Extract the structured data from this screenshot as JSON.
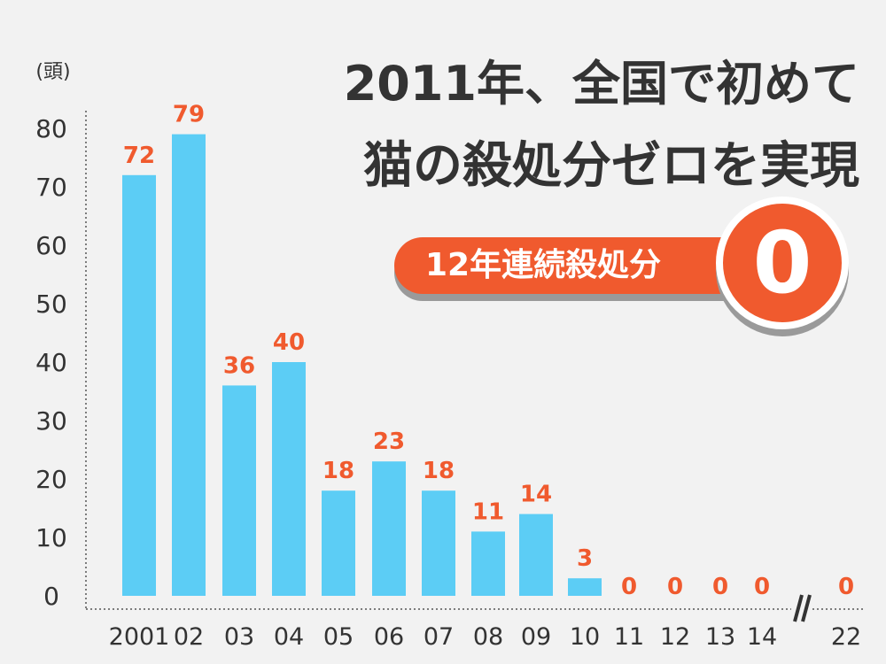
{
  "title_line1": "2011年、全国で初めて",
  "title_line2": "猫の殺処分ゼロを実現",
  "badge": {
    "label": "12年連続殺処分",
    "value": "0"
  },
  "colors": {
    "bar": "#5ccdf5",
    "label": "#f05a2e",
    "text": "#333333",
    "axis": "#555555"
  },
  "chart_data": {
    "type": "bar",
    "ylabel": "(頭)",
    "ylim": [
      0,
      80
    ],
    "yticks": [
      0,
      10,
      20,
      30,
      40,
      50,
      60,
      70,
      80
    ],
    "categories": [
      "2001",
      "02",
      "03",
      "04",
      "05",
      "06",
      "07",
      "08",
      "09",
      "10",
      "11",
      "12",
      "13",
      "14",
      "22"
    ],
    "values": [
      72,
      79,
      36,
      40,
      18,
      23,
      18,
      11,
      14,
      3,
      0,
      0,
      0,
      0,
      0
    ],
    "axis_break": "//",
    "axis_break_after": "14"
  }
}
